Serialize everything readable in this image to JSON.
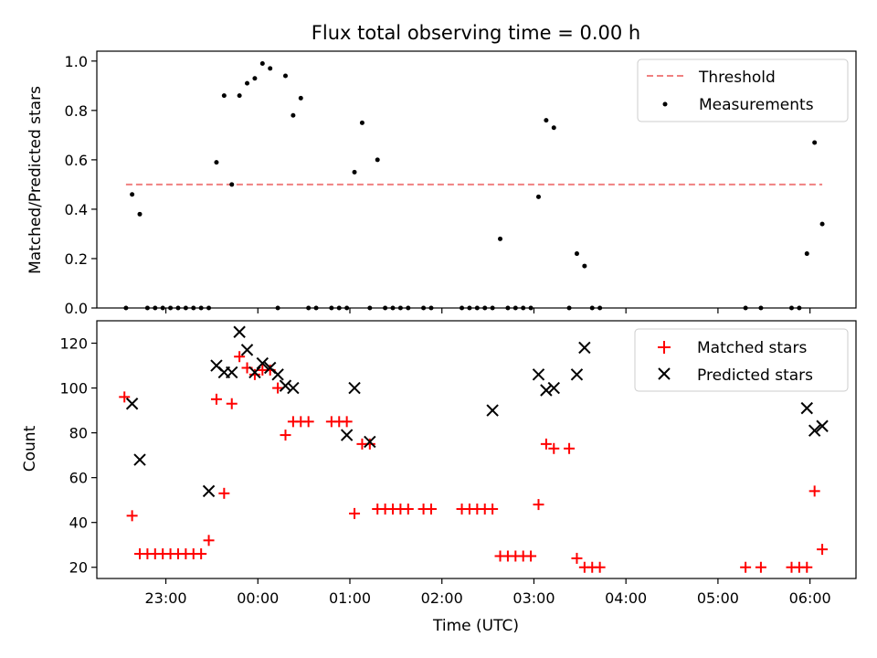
{
  "chart_data": [
    {
      "type": "scatter",
      "title": "Flux total observing time = 0.00 h",
      "xlabel": "",
      "ylabel": "Matched/Predicted stars",
      "xlim": [
        "22:15",
        "06:30"
      ],
      "ylim": [
        0,
        1.04
      ],
      "yticks": [
        "0.0",
        "0.2",
        "0.4",
        "0.6",
        "0.8",
        "1.0"
      ],
      "legend_position": "upper right",
      "series": [
        {
          "name": "Threshold",
          "kind": "dashed-line",
          "color": "#f08080",
          "points": [
            [
              "22:34",
              0.5
            ],
            [
              "06:08",
              0.5
            ]
          ]
        },
        {
          "name": "Measurements",
          "kind": "dot",
          "color": "#000000",
          "points": [
            [
              "22:34",
              0.0
            ],
            [
              "22:38",
              0.46
            ],
            [
              "22:43",
              0.38
            ],
            [
              "22:48",
              0.0
            ],
            [
              "22:53",
              0.0
            ],
            [
              "22:58",
              0.0
            ],
            [
              "23:03",
              0.0
            ],
            [
              "23:08",
              0.0
            ],
            [
              "23:13",
              0.0
            ],
            [
              "23:18",
              0.0
            ],
            [
              "23:23",
              0.0
            ],
            [
              "23:28",
              0.0
            ],
            [
              "23:33",
              0.59
            ],
            [
              "23:38",
              0.86
            ],
            [
              "23:43",
              0.5
            ],
            [
              "23:48",
              0.86
            ],
            [
              "23:53",
              0.91
            ],
            [
              "23:58",
              0.93
            ],
            [
              "00:03",
              0.99
            ],
            [
              "00:08",
              0.97
            ],
            [
              "00:13",
              0.0
            ],
            [
              "00:18",
              0.94
            ],
            [
              "00:23",
              0.78
            ],
            [
              "00:28",
              0.85
            ],
            [
              "00:33",
              0.0
            ],
            [
              "00:38",
              0.0
            ],
            [
              "00:48",
              0.0
            ],
            [
              "00:53",
              0.0
            ],
            [
              "00:58",
              0.0
            ],
            [
              "01:03",
              0.55
            ],
            [
              "01:08",
              0.75
            ],
            [
              "01:13",
              0.0
            ],
            [
              "01:18",
              0.6
            ],
            [
              "01:23",
              0.0
            ],
            [
              "01:28",
              0.0
            ],
            [
              "01:33",
              0.0
            ],
            [
              "01:38",
              0.0
            ],
            [
              "01:48",
              0.0
            ],
            [
              "01:53",
              0.0
            ],
            [
              "02:13",
              0.0
            ],
            [
              "02:18",
              0.0
            ],
            [
              "02:23",
              0.0
            ],
            [
              "02:28",
              0.0
            ],
            [
              "02:33",
              0.0
            ],
            [
              "02:38",
              0.28
            ],
            [
              "02:43",
              0.0
            ],
            [
              "02:48",
              0.0
            ],
            [
              "02:53",
              0.0
            ],
            [
              "02:58",
              0.0
            ],
            [
              "03:03",
              0.45
            ],
            [
              "03:08",
              0.76
            ],
            [
              "03:13",
              0.73
            ],
            [
              "03:23",
              0.0
            ],
            [
              "03:28",
              0.22
            ],
            [
              "03:33",
              0.17
            ],
            [
              "03:38",
              0.0
            ],
            [
              "03:43",
              0.0
            ],
            [
              "05:18",
              0.0
            ],
            [
              "05:28",
              0.0
            ],
            [
              "05:48",
              0.0
            ],
            [
              "05:53",
              0.0
            ],
            [
              "05:58",
              0.22
            ],
            [
              "06:03",
              0.67
            ],
            [
              "06:08",
              0.34
            ]
          ]
        }
      ]
    },
    {
      "type": "scatter",
      "title": "",
      "xlabel": "Time (UTC)",
      "ylabel": "Count",
      "xlim": [
        "22:15",
        "06:30"
      ],
      "ylim": [
        15,
        130
      ],
      "yticks": [
        "20",
        "40",
        "60",
        "80",
        "100",
        "120"
      ],
      "xticks": [
        "23:00",
        "00:00",
        "01:00",
        "02:00",
        "03:00",
        "04:00",
        "05:00",
        "06:00"
      ],
      "legend_position": "upper right",
      "series": [
        {
          "name": "Matched stars",
          "kind": "plus",
          "color": "#ff0000",
          "points": [
            [
              "22:33",
              96
            ],
            [
              "22:38",
              43
            ],
            [
              "22:43",
              26
            ],
            [
              "22:48",
              26
            ],
            [
              "22:53",
              26
            ],
            [
              "22:58",
              26
            ],
            [
              "23:03",
              26
            ],
            [
              "23:08",
              26
            ],
            [
              "23:13",
              26
            ],
            [
              "23:18",
              26
            ],
            [
              "23:23",
              26
            ],
            [
              "23:28",
              32
            ],
            [
              "23:33",
              95
            ],
            [
              "23:38",
              53
            ],
            [
              "23:43",
              93
            ],
            [
              "23:48",
              114
            ],
            [
              "23:53",
              109
            ],
            [
              "23:58",
              106
            ],
            [
              "00:03",
              108
            ],
            [
              "00:08",
              108
            ],
            [
              "00:13",
              100
            ],
            [
              "00:18",
              79
            ],
            [
              "00:23",
              85
            ],
            [
              "00:28",
              85
            ],
            [
              "00:33",
              85
            ],
            [
              "00:48",
              85
            ],
            [
              "00:53",
              85
            ],
            [
              "00:58",
              85
            ],
            [
              "01:03",
              44
            ],
            [
              "01:08",
              75
            ],
            [
              "01:13",
              75
            ],
            [
              "01:18",
              46
            ],
            [
              "01:23",
              46
            ],
            [
              "01:28",
              46
            ],
            [
              "01:33",
              46
            ],
            [
              "01:38",
              46
            ],
            [
              "01:48",
              46
            ],
            [
              "01:53",
              46
            ],
            [
              "02:13",
              46
            ],
            [
              "02:18",
              46
            ],
            [
              "02:23",
              46
            ],
            [
              "02:28",
              46
            ],
            [
              "02:33",
              46
            ],
            [
              "02:38",
              25
            ],
            [
              "02:43",
              25
            ],
            [
              "02:48",
              25
            ],
            [
              "02:53",
              25
            ],
            [
              "02:58",
              25
            ],
            [
              "03:03",
              48
            ],
            [
              "03:08",
              75
            ],
            [
              "03:13",
              73
            ],
            [
              "03:23",
              73
            ],
            [
              "03:28",
              24
            ],
            [
              "03:33",
              20
            ],
            [
              "03:38",
              20
            ],
            [
              "03:43",
              20
            ],
            [
              "05:18",
              20
            ],
            [
              "05:28",
              20
            ],
            [
              "05:48",
              20
            ],
            [
              "05:53",
              20
            ],
            [
              "05:58",
              20
            ],
            [
              "06:03",
              54
            ],
            [
              "06:08",
              28
            ]
          ]
        },
        {
          "name": "Predicted stars",
          "kind": "x",
          "color": "#000000",
          "points": [
            [
              "22:38",
              93
            ],
            [
              "22:43",
              68
            ],
            [
              "23:28",
              54
            ],
            [
              "23:33",
              110
            ],
            [
              "23:38",
              107
            ],
            [
              "23:43",
              107
            ],
            [
              "23:48",
              125
            ],
            [
              "23:53",
              117
            ],
            [
              "23:58",
              107
            ],
            [
              "00:03",
              111
            ],
            [
              "00:08",
              109
            ],
            [
              "00:13",
              106
            ],
            [
              "00:18",
              101
            ],
            [
              "00:23",
              100
            ],
            [
              "00:58",
              79
            ],
            [
              "01:03",
              100
            ],
            [
              "01:13",
              76
            ],
            [
              "02:33",
              90
            ],
            [
              "03:03",
              106
            ],
            [
              "03:08",
              99
            ],
            [
              "03:13",
              100
            ],
            [
              "03:28",
              106
            ],
            [
              "03:33",
              118
            ],
            [
              "05:58",
              91
            ],
            [
              "06:03",
              81
            ],
            [
              "06:08",
              83
            ]
          ]
        }
      ]
    }
  ]
}
